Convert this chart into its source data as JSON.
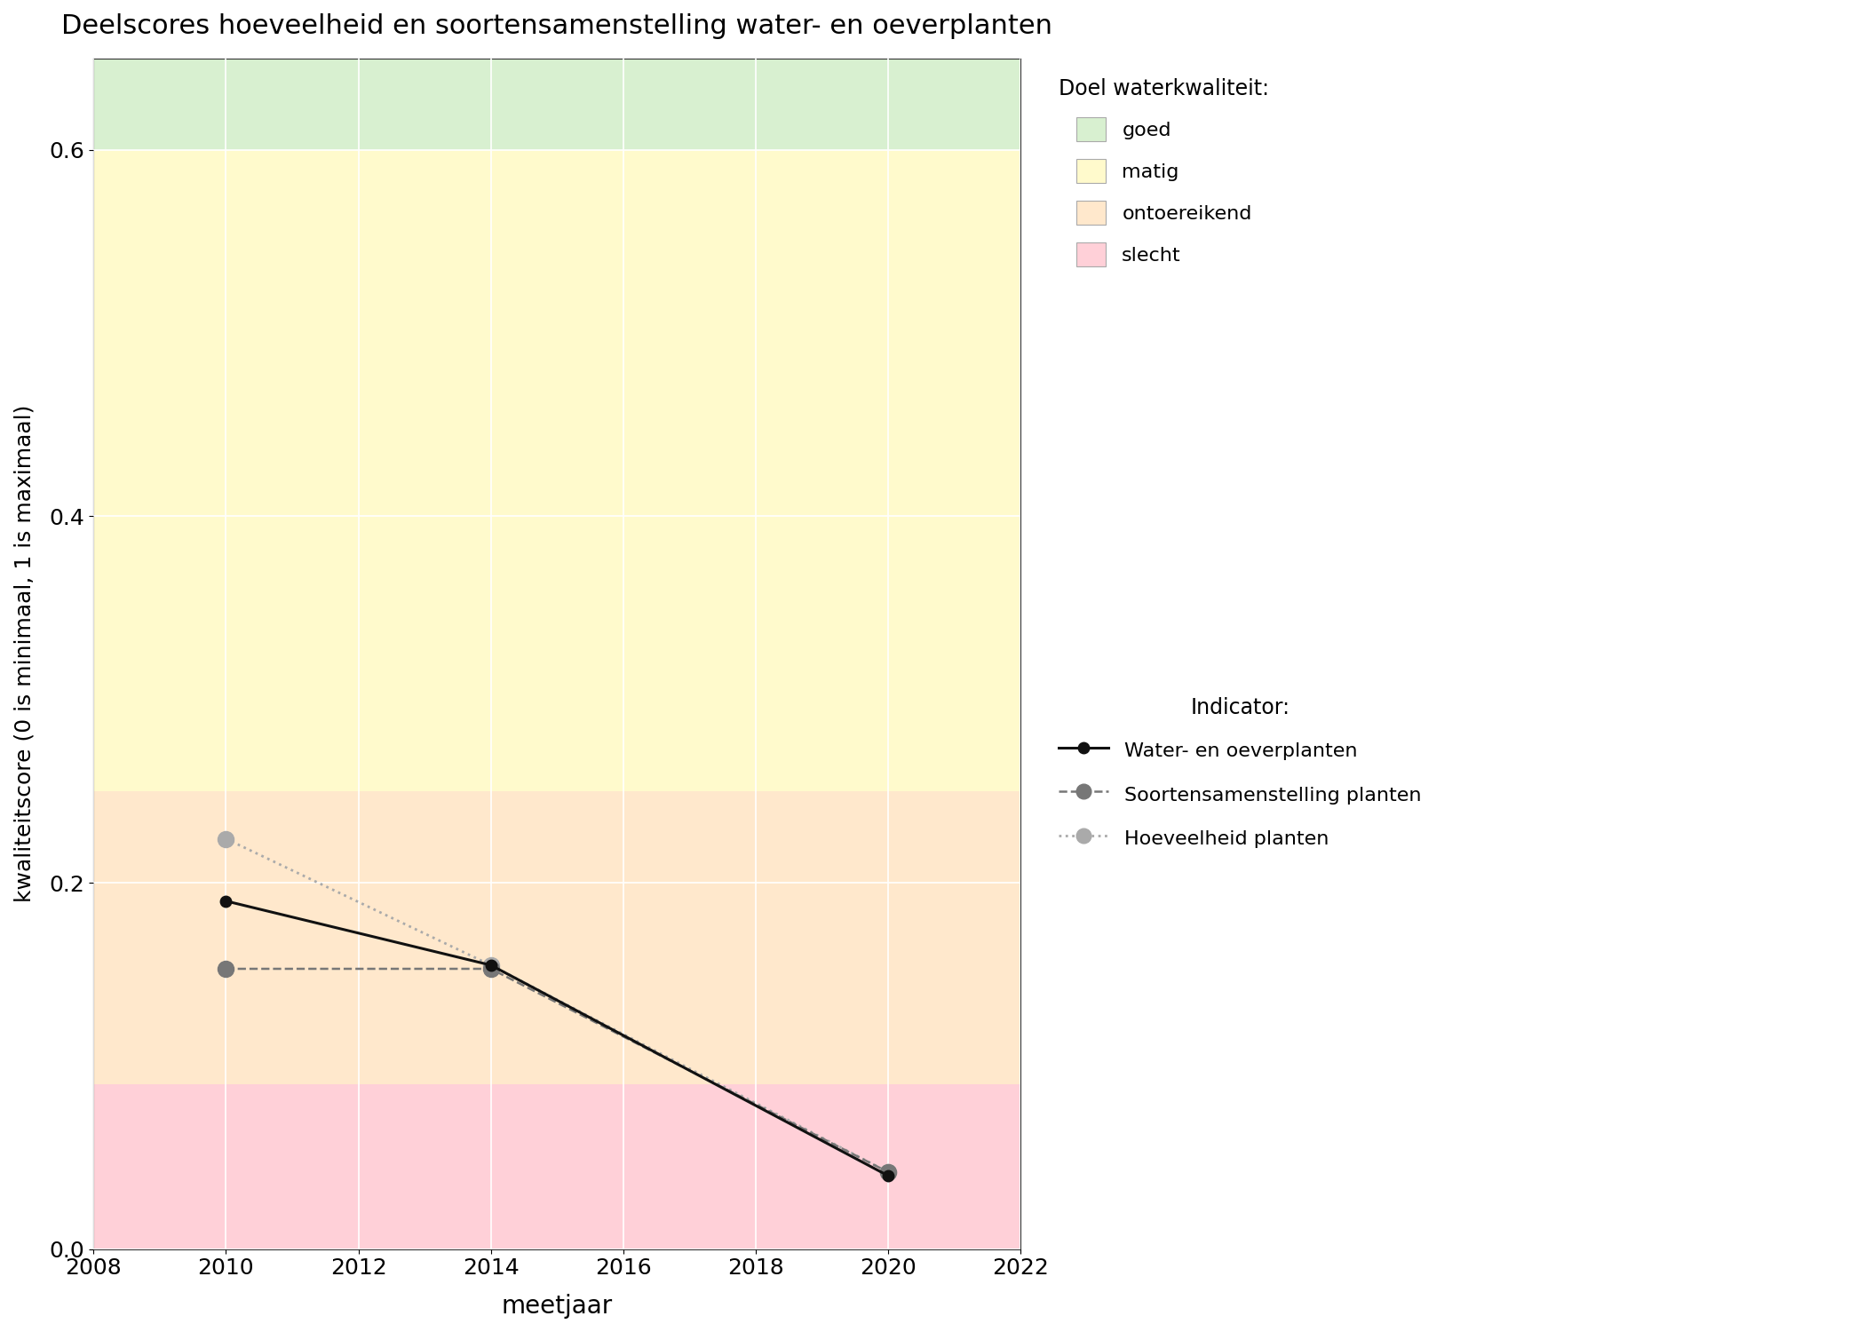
{
  "title": "Deelscores hoeveelheid en soortensamenstelling water- en oeverplanten",
  "xlabel": "meetjaar",
  "ylabel": "kwaliteitscore (0 is minimaal, 1 is maximaal)",
  "xlim": [
    2008,
    2022
  ],
  "ylim": [
    0,
    0.65
  ],
  "xticks": [
    2008,
    2010,
    2012,
    2014,
    2016,
    2018,
    2020,
    2022
  ],
  "yticks": [
    0.0,
    0.2,
    0.4,
    0.6
  ],
  "bg_bands": [
    {
      "ymin": 0.0,
      "ymax": 0.09,
      "color": "#FFD0D8",
      "label": "slecht"
    },
    {
      "ymin": 0.09,
      "ymax": 0.25,
      "color": "#FFE8CC",
      "label": "ontoereikend"
    },
    {
      "ymin": 0.25,
      "ymax": 0.6,
      "color": "#FFFACC",
      "label": "matig"
    },
    {
      "ymin": 0.6,
      "ymax": 1.0,
      "color": "#D8F0D0",
      "label": "goed"
    }
  ],
  "line_water": {
    "years": [
      2010,
      2014,
      2020
    ],
    "values": [
      0.19,
      0.155,
      0.04
    ],
    "color": "#111111",
    "linestyle": "solid",
    "linewidth": 2.2,
    "marker": "o",
    "markersize": 9,
    "markerfacecolor": "#111111",
    "markeredgecolor": "#111111",
    "label": "Water- en oeverplanten"
  },
  "line_soorten": {
    "years": [
      2010,
      2014,
      2020
    ],
    "values": [
      0.153,
      0.153,
      0.042
    ],
    "color": "#777777",
    "linestyle": "dashed",
    "linewidth": 1.8,
    "marker": "o",
    "markersize": 13,
    "markerfacecolor": "#777777",
    "markeredgecolor": "#777777",
    "label": "Soortensamenstelling planten"
  },
  "line_hoeveelheid": {
    "years": [
      2010,
      2014,
      2020
    ],
    "values": [
      0.224,
      0.155,
      0.042
    ],
    "color": "#aaaaaa",
    "linestyle": "dotted",
    "linewidth": 2.0,
    "marker": "o",
    "markersize": 13,
    "markerfacecolor": "#aaaaaa",
    "markeredgecolor": "#aaaaaa",
    "label": "Hoeveelheid planten"
  },
  "legend_quality_title": "Doel waterkwaliteit:",
  "legend_indicator_title": "Indicator:",
  "quality_colors": {
    "goed": "#D8F0D0",
    "matig": "#FFFACC",
    "ontoereikend": "#FFE8CC",
    "slecht": "#FFD0D8"
  },
  "fig_width": 21.0,
  "fig_height": 15.0
}
